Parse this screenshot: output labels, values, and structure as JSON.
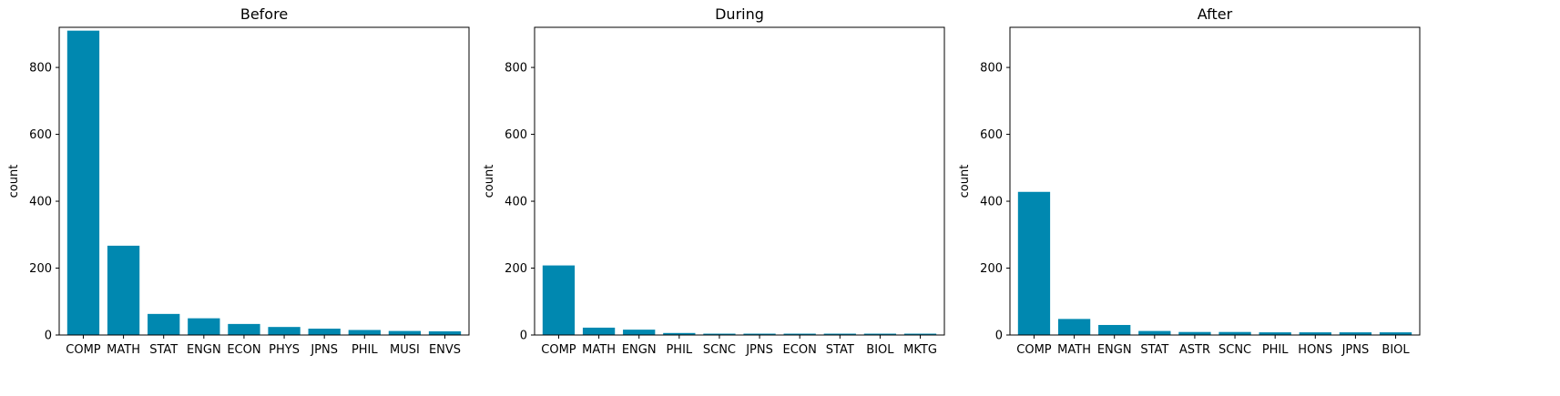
{
  "chart_data": [
    {
      "type": "bar",
      "title": "Before",
      "xlabel": "",
      "ylabel": "count",
      "ylim": [
        0,
        920
      ],
      "yticks": [
        0,
        200,
        400,
        600,
        800
      ],
      "categories": [
        "COMP",
        "MATH",
        "STAT",
        "ENGN",
        "ECON",
        "PHYS",
        "JPNS",
        "PHIL",
        "MUSI",
        "ENVS"
      ],
      "values": [
        910,
        267,
        63,
        50,
        33,
        24,
        19,
        15,
        12,
        11
      ],
      "color": "#0088B0"
    },
    {
      "type": "bar",
      "title": "During",
      "xlabel": "",
      "ylabel": "count",
      "ylim": [
        0,
        920
      ],
      "yticks": [
        0,
        200,
        400,
        600,
        800
      ],
      "categories": [
        "COMP",
        "MATH",
        "ENGN",
        "PHIL",
        "SCNC",
        "JPNS",
        "ECON",
        "STAT",
        "BIOL",
        "MKTG"
      ],
      "values": [
        208,
        22,
        16,
        6,
        4,
        4,
        4,
        4,
        4,
        4
      ],
      "color": "#0088B0"
    },
    {
      "type": "bar",
      "title": "After",
      "xlabel": "",
      "ylabel": "count",
      "ylim": [
        0,
        920
      ],
      "yticks": [
        0,
        200,
        400,
        600,
        800
      ],
      "categories": [
        "COMP",
        "MATH",
        "ENGN",
        "STAT",
        "ASTR",
        "SCNC",
        "PHIL",
        "HONS",
        "JPNS",
        "BIOL"
      ],
      "values": [
        428,
        48,
        30,
        12,
        9,
        9,
        8,
        8,
        8,
        8
      ],
      "color": "#0088B0"
    }
  ]
}
